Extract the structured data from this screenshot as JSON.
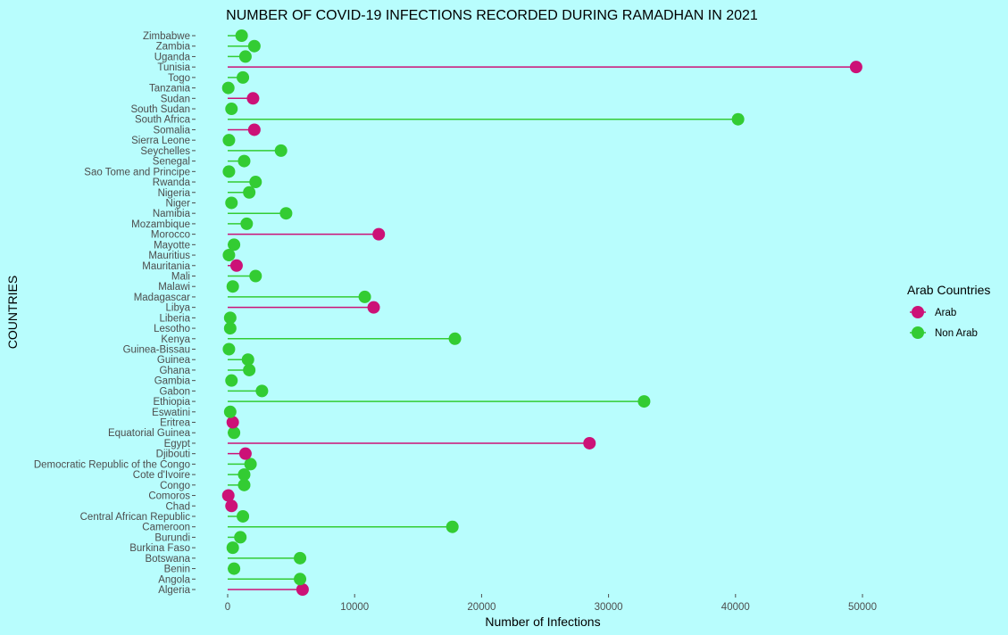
{
  "chart_data": {
    "type": "lollipop",
    "title": "NUMBER OF COVID-19 INFECTIONS RECORDED DURING RAMADHAN IN 2021",
    "xlabel": "Number of Infections",
    "ylabel": "COUNTRIES",
    "xlim": [
      -2500,
      52000
    ],
    "x_ticks": [
      0,
      10000,
      20000,
      30000,
      40000,
      50000
    ],
    "x_tick_labels": [
      "0",
      "10000",
      "20000",
      "30000",
      "40000",
      "50000"
    ],
    "grid": false,
    "legend": {
      "title": "Arab Countries",
      "position": "right",
      "entries": [
        {
          "label": "Arab",
          "color": "#cc1177"
        },
        {
          "label": "Non Arab",
          "color": "#33cc33"
        }
      ]
    },
    "colors": {
      "Arab": "#cc1177",
      "Non Arab": "#33cc33"
    },
    "categories": [
      "Algeria",
      "Angola",
      "Benin",
      "Botswana",
      "Burkina Faso",
      "Burundi",
      "Cameroon",
      "Central African Republic",
      "Chad",
      "Comoros",
      "Congo",
      "Cote d'Ivoire",
      "Democratic Republic of the Congo",
      "Djibouti",
      "Egypt",
      "Equatorial Guinea",
      "Eritrea",
      "Eswatini",
      "Ethiopia",
      "Gabon",
      "Gambia",
      "Ghana",
      "Guinea",
      "Guinea-Bissau",
      "Kenya",
      "Lesotho",
      "Liberia",
      "Libya",
      "Madagascar",
      "Malawi",
      "Mali",
      "Mauritania",
      "Mauritius",
      "Mayotte",
      "Morocco",
      "Mozambique",
      "Namibia",
      "Niger",
      "Nigeria",
      "Rwanda",
      "Sao Tome and Principe",
      "Senegal",
      "Seychelles",
      "Sierra Leone",
      "Somalia",
      "South Africa",
      "South Sudan",
      "Sudan",
      "Tanzania",
      "Togo",
      "Tunisia",
      "Uganda",
      "Zambia",
      "Zimbabwe"
    ],
    "values": [
      5900,
      5700,
      500,
      5700,
      400,
      1000,
      17700,
      1200,
      300,
      50,
      1300,
      1300,
      1800,
      1400,
      28500,
      500,
      400,
      200,
      32800,
      2700,
      300,
      1700,
      1600,
      100,
      17900,
      200,
      200,
      11500,
      10800,
      400,
      2200,
      700,
      100,
      500,
      11900,
      1500,
      4600,
      300,
      1700,
      2200,
      100,
      1300,
      4200,
      100,
      2100,
      40200,
      300,
      2000,
      50,
      1200,
      49500,
      1400,
      2100,
      1100
    ],
    "groups": [
      "Arab",
      "Non Arab",
      "Non Arab",
      "Non Arab",
      "Non Arab",
      "Non Arab",
      "Non Arab",
      "Non Arab",
      "Arab",
      "Arab",
      "Non Arab",
      "Non Arab",
      "Non Arab",
      "Arab",
      "Arab",
      "Non Arab",
      "Arab",
      "Non Arab",
      "Non Arab",
      "Non Arab",
      "Non Arab",
      "Non Arab",
      "Non Arab",
      "Non Arab",
      "Non Arab",
      "Non Arab",
      "Non Arab",
      "Arab",
      "Non Arab",
      "Non Arab",
      "Non Arab",
      "Arab",
      "Non Arab",
      "Non Arab",
      "Arab",
      "Non Arab",
      "Non Arab",
      "Non Arab",
      "Non Arab",
      "Non Arab",
      "Non Arab",
      "Non Arab",
      "Non Arab",
      "Non Arab",
      "Arab",
      "Non Arab",
      "Non Arab",
      "Arab",
      "Non Arab",
      "Non Arab",
      "Arab",
      "Non Arab",
      "Non Arab",
      "Non Arab"
    ]
  }
}
